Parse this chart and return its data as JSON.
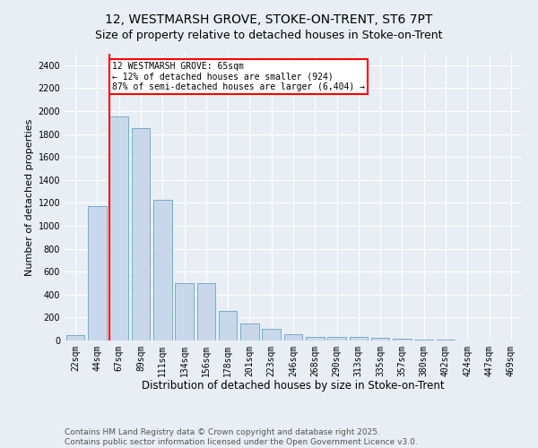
{
  "title": "12, WESTMARSH GROVE, STOKE-ON-TRENT, ST6 7PT",
  "subtitle": "Size of property relative to detached houses in Stoke-on-Trent",
  "xlabel": "Distribution of detached houses by size in Stoke-on-Trent",
  "ylabel": "Number of detached properties",
  "categories": [
    "22sqm",
    "44sqm",
    "67sqm",
    "89sqm",
    "111sqm",
    "134sqm",
    "156sqm",
    "178sqm",
    "201sqm",
    "223sqm",
    "246sqm",
    "268sqm",
    "290sqm",
    "313sqm",
    "335sqm",
    "357sqm",
    "380sqm",
    "402sqm",
    "424sqm",
    "447sqm",
    "469sqm"
  ],
  "values": [
    50,
    1175,
    1950,
    1850,
    1225,
    500,
    500,
    260,
    150,
    100,
    55,
    28,
    28,
    28,
    22,
    12,
    7,
    5,
    3,
    2,
    2
  ],
  "bar_color": "#c8d8ea",
  "bar_edge_color": "#7aaac8",
  "vline_color": "red",
  "vline_x_index": 2,
  "annotation_text": "12 WESTMARSH GROVE: 65sqm\n← 12% of detached houses are smaller (924)\n87% of semi-detached houses are larger (6,404) →",
  "annotation_box_color": "white",
  "annotation_box_edge": "red",
  "ylim": [
    0,
    2500
  ],
  "yticks": [
    0,
    200,
    400,
    600,
    800,
    1000,
    1200,
    1400,
    1600,
    1800,
    2000,
    2200,
    2400
  ],
  "background_color": "#e8eef4",
  "footer_line1": "Contains HM Land Registry data © Crown copyright and database right 2025.",
  "footer_line2": "Contains public sector information licensed under the Open Government Licence v3.0.",
  "title_fontsize": 10,
  "xlabel_fontsize": 8.5,
  "ylabel_fontsize": 8,
  "tick_fontsize": 7,
  "footer_fontsize": 6.5,
  "bar_width": 0.85
}
